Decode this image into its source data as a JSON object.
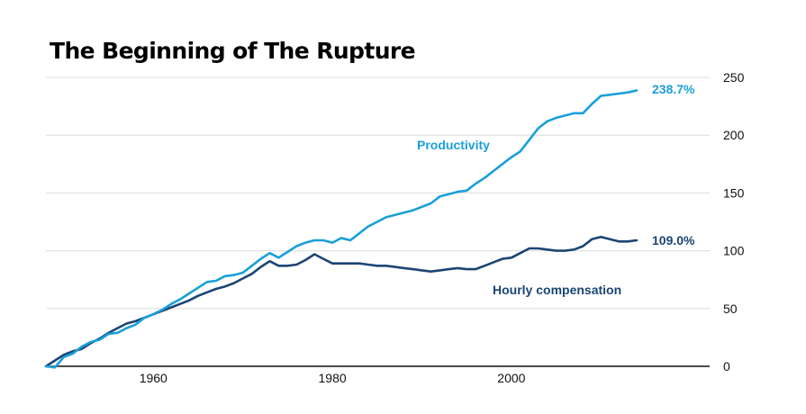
{
  "chart_data": {
    "type": "line",
    "title": "The Beginning of The Rupture",
    "xlabel": "",
    "ylabel": "",
    "xlim": [
      1948,
      2014
    ],
    "ylim": [
      0,
      250
    ],
    "x_ticks": [
      1960,
      1980,
      2000
    ],
    "y_ticks": [
      0,
      50,
      100,
      150,
      200,
      250
    ],
    "grid": true,
    "series": [
      {
        "name": "Productivity",
        "color": "#1a9fd9",
        "end_label": "238.7%",
        "points": [
          [
            1948,
            0
          ],
          [
            1949,
            -1
          ],
          [
            1950,
            8
          ],
          [
            1951,
            11
          ],
          [
            1952,
            17
          ],
          [
            1953,
            21
          ],
          [
            1954,
            23
          ],
          [
            1955,
            28
          ],
          [
            1956,
            29
          ],
          [
            1957,
            33
          ],
          [
            1958,
            36
          ],
          [
            1959,
            42
          ],
          [
            1960,
            45
          ],
          [
            1961,
            49
          ],
          [
            1962,
            54
          ],
          [
            1963,
            58
          ],
          [
            1964,
            63
          ],
          [
            1965,
            68
          ],
          [
            1966,
            73
          ],
          [
            1967,
            74
          ],
          [
            1968,
            78
          ],
          [
            1969,
            79
          ],
          [
            1970,
            81
          ],
          [
            1971,
            87
          ],
          [
            1972,
            93
          ],
          [
            1973,
            98
          ],
          [
            1974,
            94
          ],
          [
            1975,
            99
          ],
          [
            1976,
            104
          ],
          [
            1977,
            107
          ],
          [
            1978,
            109
          ],
          [
            1979,
            109
          ],
          [
            1980,
            107
          ],
          [
            1981,
            111
          ],
          [
            1982,
            109
          ],
          [
            1983,
            115
          ],
          [
            1984,
            121
          ],
          [
            1985,
            125
          ],
          [
            1986,
            129
          ],
          [
            1987,
            131
          ],
          [
            1988,
            133
          ],
          [
            1989,
            135
          ],
          [
            1990,
            138
          ],
          [
            1991,
            141
          ],
          [
            1992,
            147
          ],
          [
            1993,
            149
          ],
          [
            1994,
            151
          ],
          [
            1995,
            152
          ],
          [
            1996,
            158
          ],
          [
            1997,
            163
          ],
          [
            1998,
            169
          ],
          [
            1999,
            175
          ],
          [
            2000,
            181
          ],
          [
            2001,
            186
          ],
          [
            2002,
            196
          ],
          [
            2003,
            206
          ],
          [
            2004,
            212
          ],
          [
            2005,
            215
          ],
          [
            2006,
            217
          ],
          [
            2007,
            219
          ],
          [
            2008,
            219
          ],
          [
            2009,
            227
          ],
          [
            2010,
            234
          ],
          [
            2011,
            235
          ],
          [
            2012,
            236
          ],
          [
            2013,
            237
          ],
          [
            2014,
            238.7
          ]
        ]
      },
      {
        "name": "Hourly compensation",
        "color": "#1b4573",
        "end_label": "109.0%",
        "points": [
          [
            1948,
            0
          ],
          [
            1949,
            5
          ],
          [
            1950,
            10
          ],
          [
            1951,
            13
          ],
          [
            1952,
            15
          ],
          [
            1953,
            20
          ],
          [
            1954,
            24
          ],
          [
            1955,
            29
          ],
          [
            1956,
            33
          ],
          [
            1957,
            37
          ],
          [
            1958,
            39
          ],
          [
            1959,
            42
          ],
          [
            1960,
            45
          ],
          [
            1961,
            48
          ],
          [
            1962,
            51
          ],
          [
            1963,
            54
          ],
          [
            1964,
            57
          ],
          [
            1965,
            61
          ],
          [
            1966,
            64
          ],
          [
            1967,
            67
          ],
          [
            1968,
            69
          ],
          [
            1969,
            72
          ],
          [
            1970,
            76
          ],
          [
            1971,
            80
          ],
          [
            1972,
            86
          ],
          [
            1973,
            91
          ],
          [
            1974,
            87
          ],
          [
            1975,
            87
          ],
          [
            1976,
            88
          ],
          [
            1977,
            92
          ],
          [
            1978,
            97
          ],
          [
            1979,
            93
          ],
          [
            1980,
            89
          ],
          [
            1981,
            89
          ],
          [
            1982,
            89
          ],
          [
            1983,
            89
          ],
          [
            1984,
            88
          ],
          [
            1985,
            87
          ],
          [
            1986,
            87
          ],
          [
            1987,
            86
          ],
          [
            1988,
            85
          ],
          [
            1989,
            84
          ],
          [
            1990,
            83
          ],
          [
            1991,
            82
          ],
          [
            1992,
            83
          ],
          [
            1993,
            84
          ],
          [
            1994,
            85
          ],
          [
            1995,
            84
          ],
          [
            1996,
            84
          ],
          [
            1997,
            87
          ],
          [
            1998,
            90
          ],
          [
            1999,
            93
          ],
          [
            2000,
            94
          ],
          [
            2001,
            98
          ],
          [
            2002,
            102
          ],
          [
            2003,
            102
          ],
          [
            2004,
            101
          ],
          [
            2005,
            100
          ],
          [
            2006,
            100
          ],
          [
            2007,
            101
          ],
          [
            2008,
            104
          ],
          [
            2009,
            110
          ],
          [
            2010,
            112
          ],
          [
            2011,
            110
          ],
          [
            2012,
            108
          ],
          [
            2013,
            108
          ],
          [
            2014,
            109
          ]
        ]
      }
    ]
  },
  "labels": {
    "productivity": "Productivity",
    "hourly_compensation": "Hourly compensation"
  }
}
